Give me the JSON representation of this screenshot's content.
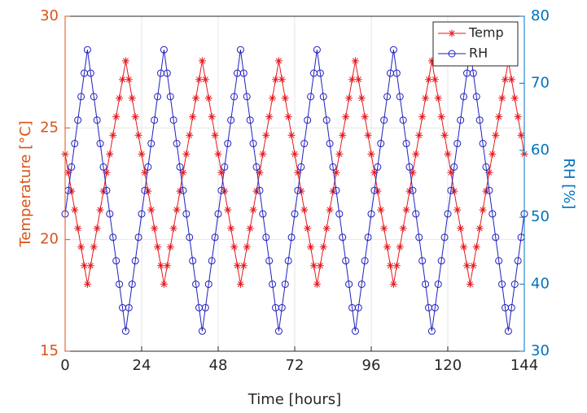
{
  "chart_data": {
    "type": "line",
    "xlabel": "Time [hours]",
    "ylabel": "Temperature [°C]",
    "y2label": "RH [%]",
    "x": [
      0,
      1,
      2,
      3,
      4,
      5,
      6,
      7,
      8,
      9,
      10,
      11,
      12,
      13,
      14,
      15,
      16,
      17,
      18,
      19,
      20,
      21,
      22,
      23,
      24,
      25,
      26,
      27,
      28,
      29,
      30,
      31,
      32,
      33,
      34,
      35,
      36,
      37,
      38,
      39,
      40,
      41,
      42,
      43,
      44,
      45,
      46,
      47,
      48,
      49,
      50,
      51,
      52,
      53,
      54,
      55,
      56,
      57,
      58,
      59,
      60,
      61,
      62,
      63,
      64,
      65,
      66,
      67,
      68,
      69,
      70,
      71,
      72,
      73,
      74,
      75,
      76,
      77,
      78,
      79,
      80,
      81,
      82,
      83,
      84,
      85,
      86,
      87,
      88,
      89,
      90,
      91,
      92,
      93,
      94,
      95,
      96,
      97,
      98,
      99,
      100,
      101,
      102,
      103,
      104,
      105,
      106,
      107,
      108,
      109,
      110,
      111,
      112,
      113,
      114,
      115,
      116,
      117,
      118,
      119,
      120,
      121,
      122,
      123,
      124,
      125,
      126,
      127,
      128,
      129,
      130,
      131,
      132,
      133,
      134,
      135,
      136,
      137,
      138,
      139,
      140,
      141,
      142,
      143,
      144
    ],
    "series": [
      {
        "name": "Temp",
        "color": "#e8161b",
        "marker": "star",
        "axis": "y",
        "values": [
          23.83,
          23,
          22.17,
          21.33,
          20.5,
          19.67,
          18.83,
          18,
          18.83,
          19.67,
          20.5,
          21.33,
          22.17,
          23,
          23.83,
          24.67,
          25.5,
          26.33,
          27.17,
          28,
          27.17,
          26.33,
          25.5,
          24.67,
          23.83,
          23,
          22.17,
          21.33,
          20.5,
          19.67,
          18.83,
          18,
          18.83,
          19.67,
          20.5,
          21.33,
          22.17,
          23,
          23.83,
          24.67,
          25.5,
          26.33,
          27.17,
          28,
          27.17,
          26.33,
          25.5,
          24.67,
          23.83,
          23,
          22.17,
          21.33,
          20.5,
          19.67,
          18.83,
          18,
          18.83,
          19.67,
          20.5,
          21.33,
          22.17,
          23,
          23.83,
          24.67,
          25.5,
          26.33,
          27.17,
          28,
          27.17,
          26.33,
          25.5,
          24.67,
          23.83,
          23,
          22.17,
          21.33,
          20.5,
          19.67,
          18.83,
          18,
          18.83,
          19.67,
          20.5,
          21.33,
          22.17,
          23,
          23.83,
          24.67,
          25.5,
          26.33,
          27.17,
          28,
          27.17,
          26.33,
          25.5,
          24.67,
          23.83,
          23,
          22.17,
          21.33,
          20.5,
          19.67,
          18.83,
          18,
          18.83,
          19.67,
          20.5,
          21.33,
          22.17,
          23,
          23.83,
          24.67,
          25.5,
          26.33,
          27.17,
          28,
          27.17,
          26.33,
          25.5,
          24.67,
          23.83,
          23,
          22.17,
          21.33,
          20.5,
          19.67,
          18.83,
          18,
          18.83,
          19.67,
          20.5,
          21.33,
          22.17,
          23,
          23.83,
          24.67,
          25.5,
          26.33,
          27.17,
          28,
          27.17,
          26.33,
          25.5,
          24.67,
          23.83
        ]
      },
      {
        "name": "RH",
        "color": "#1f1fbf",
        "marker": "circle",
        "axis": "y2",
        "values": [
          50.5,
          54,
          57.5,
          61,
          64.5,
          68,
          71.5,
          75,
          71.5,
          68,
          64.5,
          61,
          57.5,
          54,
          50.5,
          47,
          43.5,
          40,
          36.5,
          33,
          36.5,
          40,
          43.5,
          47,
          50.5,
          54,
          57.5,
          61,
          64.5,
          68,
          71.5,
          75,
          71.5,
          68,
          64.5,
          61,
          57.5,
          54,
          50.5,
          47,
          43.5,
          40,
          36.5,
          33,
          36.5,
          40,
          43.5,
          47,
          50.5,
          54,
          57.5,
          61,
          64.5,
          68,
          71.5,
          75,
          71.5,
          68,
          64.5,
          61,
          57.5,
          54,
          50.5,
          47,
          43.5,
          40,
          36.5,
          33,
          36.5,
          40,
          43.5,
          47,
          50.5,
          54,
          57.5,
          61,
          64.5,
          68,
          71.5,
          75,
          71.5,
          68,
          64.5,
          61,
          57.5,
          54,
          50.5,
          47,
          43.5,
          40,
          36.5,
          33,
          36.5,
          40,
          43.5,
          47,
          50.5,
          54,
          57.5,
          61,
          64.5,
          68,
          71.5,
          75,
          71.5,
          68,
          64.5,
          61,
          57.5,
          54,
          50.5,
          47,
          43.5,
          40,
          36.5,
          33,
          36.5,
          40,
          43.5,
          47,
          50.5,
          54,
          57.5,
          61,
          64.5,
          68,
          71.5,
          75,
          71.5,
          68,
          64.5,
          61,
          57.5,
          54,
          50.5,
          47,
          43.5,
          40,
          36.5,
          33,
          36.5,
          40,
          43.5,
          47,
          50.5
        ]
      }
    ],
    "xlim": [
      0,
      144
    ],
    "xticks": [
      0,
      24,
      48,
      72,
      96,
      120,
      144
    ],
    "ylim": [
      15,
      30
    ],
    "yticks": [
      15,
      20,
      25,
      30
    ],
    "ycolor": "#d95319",
    "y2lim": [
      30,
      80
    ],
    "y2ticks": [
      30,
      40,
      50,
      60,
      70,
      80
    ],
    "y2color": "#0072bd",
    "grid": true,
    "legend": "northeast"
  }
}
